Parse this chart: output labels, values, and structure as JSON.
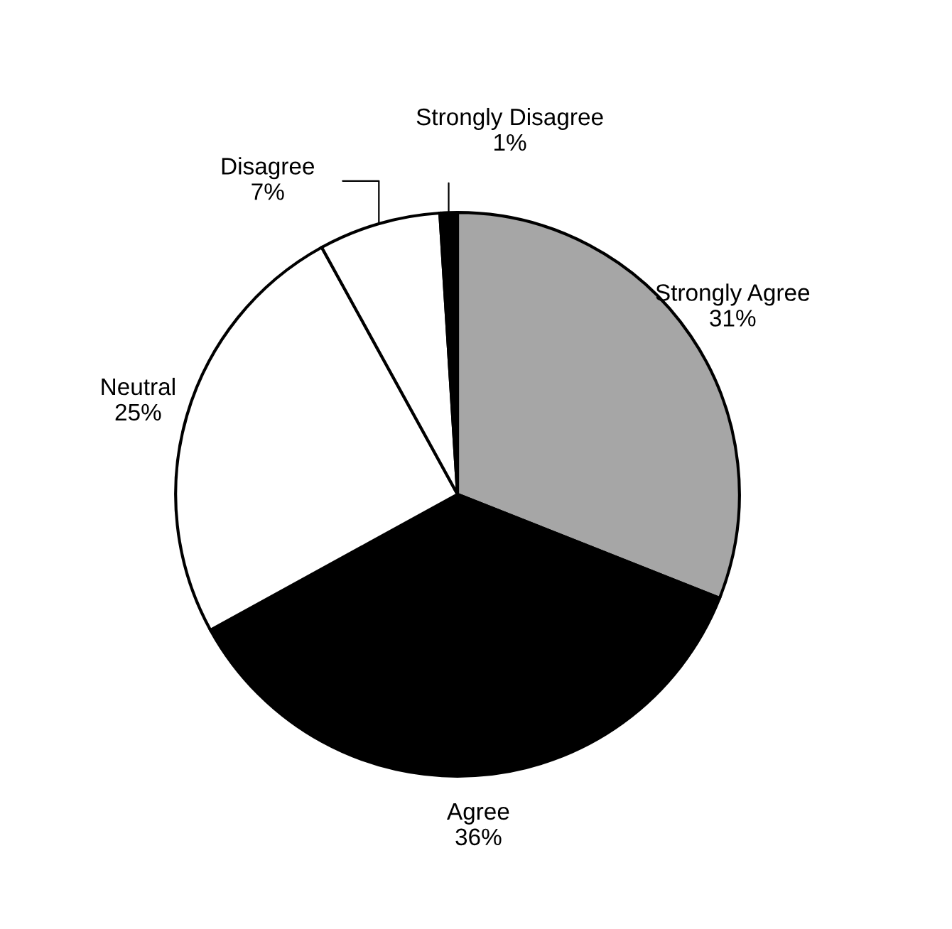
{
  "chart_data": {
    "type": "pie",
    "categories": [
      "Strongly Agree",
      "Agree",
      "Neutral",
      "Disagree",
      "Strongly Disagree"
    ],
    "values": [
      31,
      36,
      25,
      7,
      1
    ],
    "value_labels": [
      "31%",
      "36%",
      "25%",
      "7%",
      "1%"
    ],
    "colors": [
      "#a6a6a6",
      "#000000",
      "#ffffff",
      "#ffffff",
      "#000000"
    ]
  }
}
